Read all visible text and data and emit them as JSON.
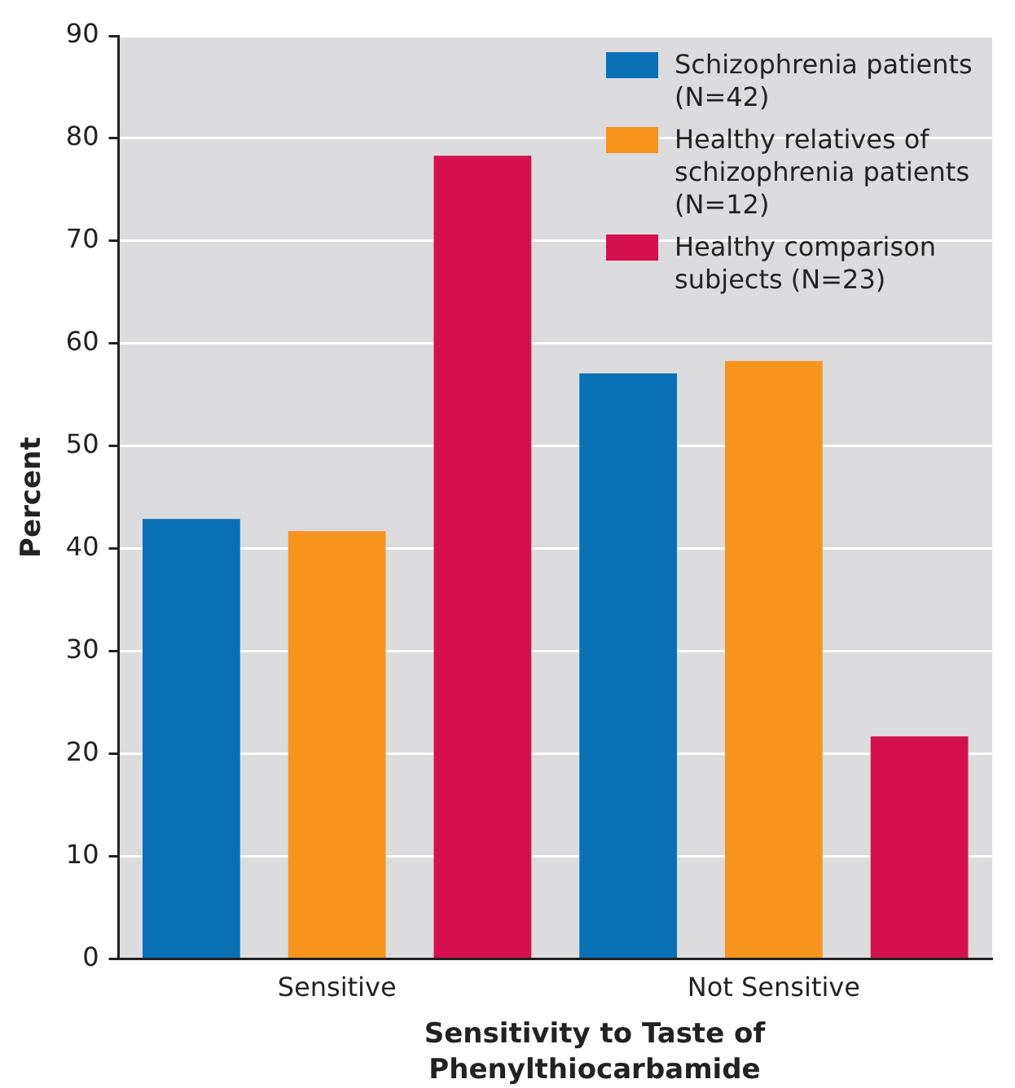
{
  "chart_data": {
    "type": "bar",
    "xlabel": "Sensitivity to Taste of Phenylthiocarbamide",
    "ylabel": "Percent",
    "categories": [
      "Sensitive",
      "Not Sensitive"
    ],
    "series": [
      {
        "name": "Schizophrenia patients (N=42)",
        "color": "#0a70b6",
        "values": [
          42.9,
          57.1
        ]
      },
      {
        "name": "Healthy relatives of schizophrenia patients (N=12)",
        "color": "#f7941e",
        "values": [
          41.7,
          58.3
        ]
      },
      {
        "name": "Healthy comparison subjects (N=23)",
        "color": "#d5104f",
        "values": [
          78.3,
          21.7
        ]
      }
    ],
    "ylim": [
      0,
      90
    ],
    "yticks": [
      0,
      10,
      20,
      30,
      40,
      50,
      60,
      70,
      80,
      90
    ],
    "grid": "y",
    "legend": "top right"
  }
}
